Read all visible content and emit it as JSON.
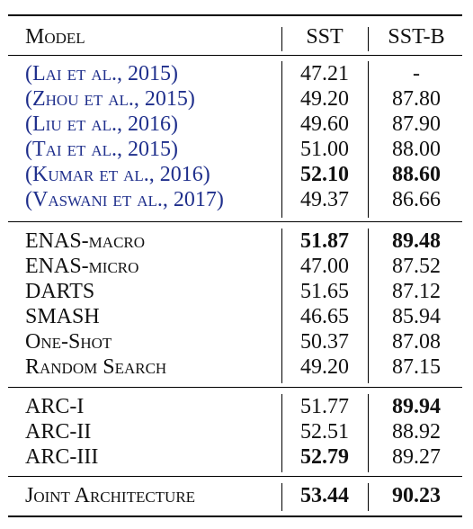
{
  "header": {
    "model": "Model",
    "sst": "SST",
    "sstb": "SST-B"
  },
  "groups": [
    {
      "rows": [
        {
          "model": "(Lai et al., 2015)",
          "sst": "47.21",
          "sstb": "-",
          "sst_bold": false,
          "sstb_bold": false
        },
        {
          "model": "(Zhou et al., 2015)",
          "sst": "49.20",
          "sstb": "87.80",
          "sst_bold": false,
          "sstb_bold": false
        },
        {
          "model": "(Liu et al., 2016)",
          "sst": "49.60",
          "sstb": "87.90",
          "sst_bold": false,
          "sstb_bold": false
        },
        {
          "model": "(Tai et al., 2015)",
          "sst": "51.00",
          "sstb": "88.00",
          "sst_bold": false,
          "sstb_bold": false
        },
        {
          "model": "(Kumar et al., 2016)",
          "sst": "52.10",
          "sstb": "88.60",
          "sst_bold": true,
          "sstb_bold": true
        },
        {
          "model": "(Vaswani et al., 2017)",
          "sst": "49.37",
          "sstb": "86.66",
          "sst_bold": false,
          "sstb_bold": false
        }
      ]
    },
    {
      "rows": [
        {
          "model": "ENAS-macro",
          "sst": "51.87",
          "sstb": "89.48",
          "sst_bold": true,
          "sstb_bold": true
        },
        {
          "model": "ENAS-micro",
          "sst": "47.00",
          "sstb": "87.52",
          "sst_bold": false,
          "sstb_bold": false
        },
        {
          "model": "DARTS",
          "sst": "51.65",
          "sstb": "87.12",
          "sst_bold": false,
          "sstb_bold": false
        },
        {
          "model": "SMASH",
          "sst": "46.65",
          "sstb": "85.94",
          "sst_bold": false,
          "sstb_bold": false
        },
        {
          "model": "One-Shot",
          "sst": "50.37",
          "sstb": "87.08",
          "sst_bold": false,
          "sstb_bold": false
        },
        {
          "model": "Random Search",
          "sst": "49.20",
          "sstb": "87.15",
          "sst_bold": false,
          "sstb_bold": false
        }
      ]
    },
    {
      "rows": [
        {
          "model": "ARC-I",
          "sst": "51.77",
          "sstb": "89.94",
          "sst_bold": false,
          "sstb_bold": true
        },
        {
          "model": "ARC-II",
          "sst": "52.51",
          "sstb": "88.92",
          "sst_bold": false,
          "sstb_bold": false
        },
        {
          "model": "ARC-III",
          "sst": "52.79",
          "sstb": "89.27",
          "sst_bold": true,
          "sstb_bold": false
        }
      ]
    },
    {
      "rows": [
        {
          "model": "Joint Architecture",
          "sst": "53.44",
          "sstb": "90.23",
          "sst_bold": true,
          "sstb_bold": true
        }
      ]
    }
  ]
}
